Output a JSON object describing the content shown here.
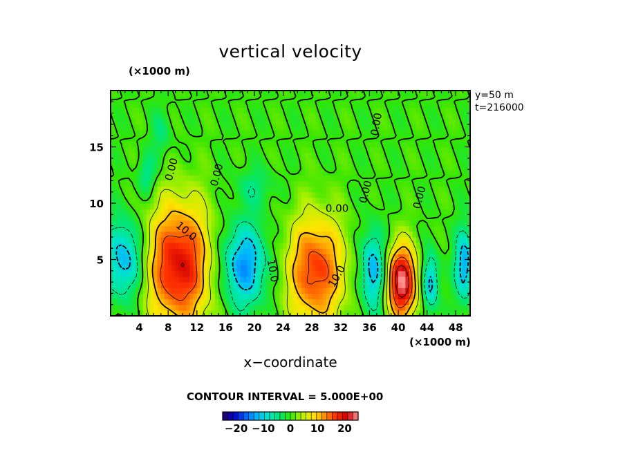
{
  "title": "vertical velocity",
  "y_units": "(×1000 m)",
  "x_units": "(×1000 m)",
  "xlabel": "x−coordinate",
  "contour_interval": "CONTOUR INTERVAL = 5.000E+00",
  "info": [
    "y=50  m",
    "t=216000"
  ],
  "colors": {
    "ramp": [
      "#2a0060",
      "#0000c8",
      "#0060ff",
      "#00b4ff",
      "#00e6c8",
      "#00e678",
      "#32e600",
      "#b4f000",
      "#ffe600",
      "#ff9600",
      "#ff3200",
      "#d20000",
      "#ff9696"
    ]
  },
  "chart_data": {
    "type": "heatmap",
    "title": "vertical velocity",
    "xlabel": "x−coordinate",
    "xlim": [
      0,
      50
    ],
    "ylim": [
      0,
      20
    ],
    "x_ticks": [
      4,
      8,
      12,
      16,
      20,
      24,
      28,
      32,
      36,
      40,
      44,
      48
    ],
    "y_ticks": [
      5,
      10,
      15
    ],
    "x_tick_labels": [
      "4",
      "8",
      "12",
      "16",
      "20",
      "24",
      "28",
      "32",
      "36",
      "40",
      "44",
      "48"
    ],
    "y_tick_labels": [
      "5",
      "10",
      "15"
    ],
    "colorbar": {
      "min": -25,
      "max": 25,
      "ticks": [
        -20,
        -10,
        0,
        10,
        20
      ],
      "tick_labels": [
        "−20",
        "−10",
        "0",
        "10",
        "20"
      ]
    },
    "contour_labels": [
      {
        "text": "10.0",
        "x": 10.5,
        "y": 7.5,
        "rotate": 40
      },
      {
        "text": "0.00",
        "x": 8.5,
        "y": 13.0,
        "rotate": -75
      },
      {
        "text": "0.00",
        "x": 14.8,
        "y": 12.5,
        "rotate": -75
      },
      {
        "text": "10.0",
        "x": 22.5,
        "y": 4.0,
        "rotate": 80
      },
      {
        "text": "10.0",
        "x": 31.5,
        "y": 3.5,
        "rotate": -60
      },
      {
        "text": "0.00",
        "x": 31.5,
        "y": 9.5,
        "rotate": 0
      },
      {
        "text": "0.00",
        "x": 35.5,
        "y": 11.0,
        "rotate": -75
      },
      {
        "text": "0.00",
        "x": 37.0,
        "y": 17.0,
        "rotate": -80
      },
      {
        "text": "0.00",
        "x": 43.0,
        "y": 10.5,
        "rotate": -75
      }
    ],
    "features": [
      {
        "x": 9.5,
        "y": 4.5,
        "sx": 3.2,
        "sy": 4.0,
        "amp": 20
      },
      {
        "x": 28.5,
        "y": 4.0,
        "sx": 2.8,
        "sy": 3.5,
        "amp": 17
      },
      {
        "x": 40.5,
        "y": 3.0,
        "sx": 1.5,
        "sy": 2.3,
        "amp": 24
      },
      {
        "x": 2.0,
        "y": 5.0,
        "sx": 1.8,
        "sy": 2.5,
        "amp": -13
      },
      {
        "x": 18.5,
        "y": 4.5,
        "sx": 2.3,
        "sy": 2.6,
        "amp": -14
      },
      {
        "x": 36.5,
        "y": 4.0,
        "sx": 1.2,
        "sy": 2.5,
        "amp": -13
      },
      {
        "x": 44.5,
        "y": 3.0,
        "sx": 0.8,
        "sy": 1.8,
        "amp": -12
      },
      {
        "x": 49.2,
        "y": 4.5,
        "sx": 0.9,
        "sy": 2.2,
        "amp": -13
      },
      {
        "x": 5.0,
        "y": 12.5,
        "sx": 0.9,
        "sy": 1.2,
        "amp": -6
      },
      {
        "x": 20.0,
        "y": 11.5,
        "sx": 2.0,
        "sy": 1.2,
        "amp": -4
      },
      {
        "x": 7.0,
        "y": 16.0,
        "sx": 1.0,
        "sy": 1.6,
        "amp": -4
      }
    ]
  }
}
